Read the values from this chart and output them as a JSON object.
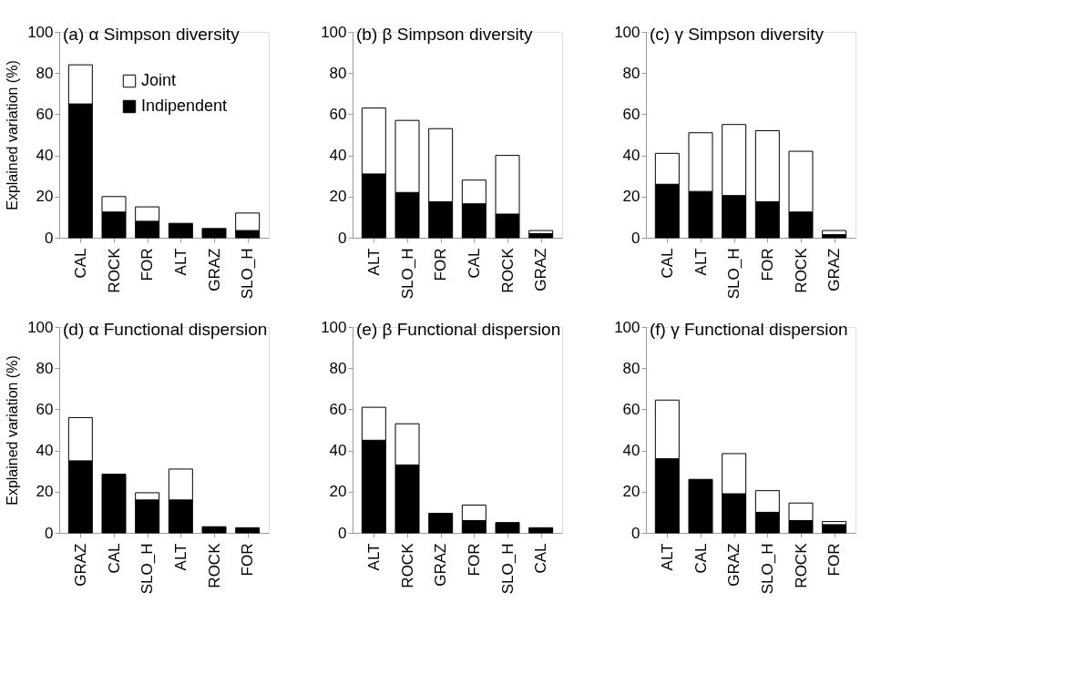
{
  "chart_data": [
    {
      "type": "bar",
      "stacked": true,
      "title": "(a) α Simpson diversity",
      "ylabel": "Explained variation (%)",
      "categories": [
        "CAL",
        "ROCK",
        "FOR",
        "ALT",
        "GRAZ",
        "SLO_H"
      ],
      "series": [
        {
          "name": "Indipendent",
          "color": "#000000",
          "values": [
            65,
            12.5,
            8,
            7,
            4.5,
            3.5
          ]
        },
        {
          "name": "Joint",
          "color": "#ffffff",
          "values": [
            19,
            7.5,
            7,
            null,
            null,
            8.5
          ]
        }
      ],
      "ylim": [
        0,
        100
      ],
      "yticks": [
        0,
        20,
        40,
        60,
        80,
        100
      ],
      "grid": false,
      "legend": "top right"
    },
    {
      "type": "bar",
      "stacked": true,
      "title": "(b) β Simpson diversity",
      "categories": [
        "ALT",
        "SLO_H",
        "FOR",
        "CAL",
        "ROCK",
        "GRAZ"
      ],
      "series": [
        {
          "color": "#000000",
          "values": [
            31,
            22,
            17.5,
            16.5,
            11.5,
            2
          ]
        },
        {
          "color": "#ffffff",
          "values": [
            32,
            35,
            35.5,
            11.5,
            28.5,
            1.5
          ]
        }
      ],
      "ylim": [
        0,
        100
      ],
      "yticks": [
        0,
        20,
        40,
        60,
        80,
        100
      ],
      "grid": false
    },
    {
      "type": "bar",
      "stacked": true,
      "title": "(c) γ Simpson diversity",
      "categories": [
        "CAL",
        "ALT",
        "SLO_H",
        "FOR",
        "ROCK",
        "GRAZ"
      ],
      "series": [
        {
          "color": "#000000",
          "values": [
            26,
            22.5,
            20.5,
            17.5,
            12.5,
            1.5
          ]
        },
        {
          "color": "#ffffff",
          "values": [
            15,
            28.5,
            34.5,
            34.5,
            29.5,
            2
          ]
        }
      ],
      "ylim": [
        0,
        100
      ],
      "yticks": [
        0,
        20,
        40,
        60,
        80,
        100
      ],
      "grid": false
    },
    {
      "type": "bar",
      "stacked": true,
      "title": "(d) α Functional dispersion",
      "ylabel": "Explained variation (%)",
      "categories": [
        "GRAZ",
        "CAL",
        "SLO_H",
        "ALT",
        "ROCK",
        "FOR"
      ],
      "series": [
        {
          "color": "#000000",
          "values": [
            35,
            28.5,
            16,
            16,
            3,
            2.5
          ]
        },
        {
          "color": "#ffffff",
          "values": [
            21,
            null,
            3.5,
            15,
            null,
            null
          ]
        }
      ],
      "ylim": [
        0,
        100
      ],
      "yticks": [
        0,
        20,
        40,
        60,
        80,
        100
      ],
      "grid": false
    },
    {
      "type": "bar",
      "stacked": true,
      "title": "(e) β Functional dispersion",
      "categories": [
        "ALT",
        "ROCK",
        "GRAZ",
        "FOR",
        "SLO_H",
        "CAL"
      ],
      "series": [
        {
          "color": "#000000",
          "values": [
            45,
            33,
            9.5,
            6,
            5,
            2.5
          ]
        },
        {
          "color": "#ffffff",
          "values": [
            16,
            20,
            null,
            7.5,
            null,
            null
          ]
        }
      ],
      "ylim": [
        0,
        100
      ],
      "yticks": [
        0,
        20,
        40,
        60,
        80,
        100
      ],
      "grid": false
    },
    {
      "type": "bar",
      "stacked": true,
      "title": "(f) γ Functional dispersion",
      "categories": [
        "ALT",
        "CAL",
        "GRAZ",
        "SLO_H",
        "ROCK",
        "FOR"
      ],
      "series": [
        {
          "color": "#000000",
          "values": [
            36,
            26,
            19,
            10,
            6,
            4
          ]
        },
        {
          "color": "#ffffff",
          "values": [
            28.5,
            null,
            19.5,
            10.5,
            8.5,
            1.5
          ]
        }
      ],
      "ylim": [
        0,
        100
      ],
      "yticks": [
        0,
        20,
        40,
        60,
        80,
        100
      ],
      "grid": false
    }
  ]
}
